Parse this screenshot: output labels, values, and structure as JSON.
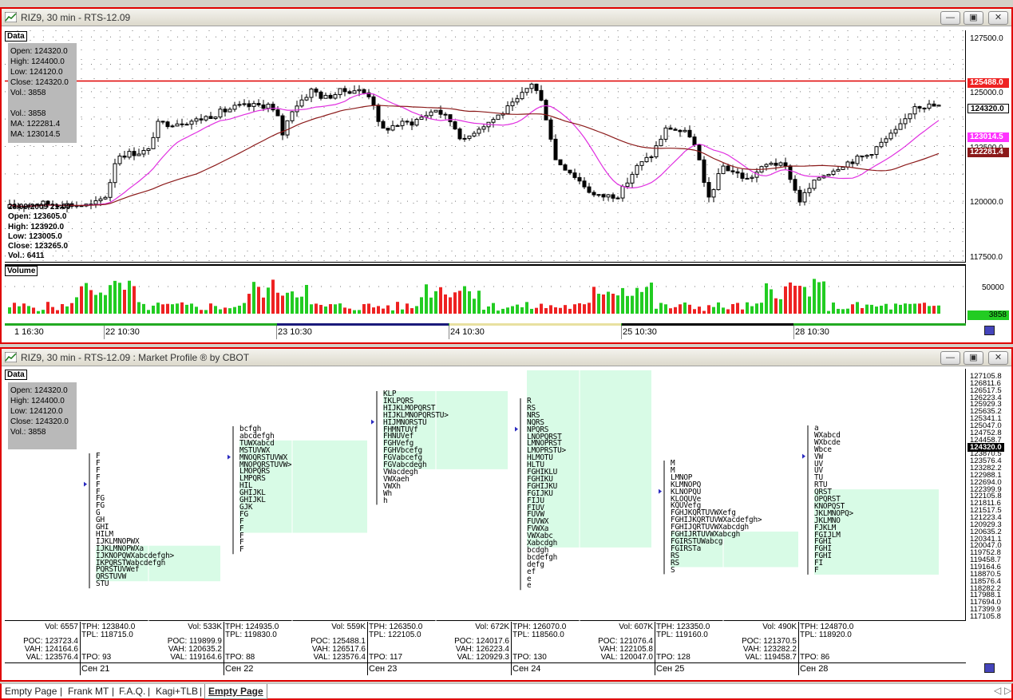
{
  "top_window": {
    "title": "RIZ9, 30 min - RTS-12.09",
    "data_tag": "Data",
    "ohlc_box": [
      "Open: 124320.0",
      "High: 124400.0",
      "Low: 124120.0",
      "Close: 124320.0",
      "Vol.: 3858",
      "",
      "Vol.: 3858",
      "MA: 122281.4",
      "MA: 123014.5"
    ],
    "hover_box": [
      "23/09/2009 21:00",
      "Open: 123605.0",
      "High: 123920.0",
      "Low: 123005.0",
      "Close: 123265.0",
      "Vol.: 6411"
    ],
    "price_ticks": [
      "127500.0",
      "125000.0",
      "122500.0",
      "120000.0",
      "117500.0"
    ],
    "price_tags": [
      {
        "text": "125488.0",
        "bg": "#ee2222",
        "fg": "#ffffff"
      },
      {
        "text": "124320.0",
        "bg": "#ffffff",
        "fg": "#000000"
      },
      {
        "text": "123014.5",
        "bg": "#ff33ff",
        "fg": "#ffffff"
      },
      {
        "text": "122281.4",
        "bg": "#8b1a1a",
        "fg": "#ffffff"
      }
    ],
    "volume_tag": "Volume",
    "volume_tick": "50000",
    "volume_last": "3858",
    "time_labels": [
      "1 16:30",
      "22 10:30",
      "23 10:30",
      "24 10:30",
      "25 10:30",
      "28 10:30"
    ],
    "colors": {
      "ma_fast": "#e030e0",
      "ma_slow": "#8b1a1a",
      "level": "#e00000",
      "up": "#22cc22",
      "down": "#ee2222"
    }
  },
  "bottom_window": {
    "title": "RIZ9, 30 min - RTS-12.09 : Market Profile ® by CBOT",
    "data_tag": "Data",
    "ohlc_box": [
      "Open: 124320.0",
      "High: 124400.0",
      "Low: 124120.0",
      "Close: 124320.0",
      "Vol.: 3858"
    ],
    "price_ticks": [
      "127105.8",
      "126811.6",
      "126517.5",
      "126223.4",
      "125929.3",
      "125635.2",
      "125341.1",
      "125047.0",
      "124752.8",
      "124458.7",
      "124320.0",
      "123870.5",
      "123576.4",
      "123282.2",
      "122988.1",
      "122694.0",
      "122399.9",
      "122105.8",
      "121811.6",
      "121517.5",
      "121223.4",
      "120929.3",
      "120635.2",
      "120341.1",
      "120047.0",
      "119752.8",
      "119458.7",
      "119164.6",
      "118870.5",
      "118576.4",
      "118282.2",
      "117988.1",
      "117694.0",
      "117399.9",
      "117105.8"
    ],
    "profiles": [
      {
        "day": "Сен 21",
        "tph": "TPH: 123840.0",
        "tpl": "TPL: 118715.0",
        "vol": "Vol: 6557",
        "poc": "POC: 123723.4",
        "vah": "VAH: 124164.6",
        "val": "VAL: 123576.4",
        "tpo": "TPO: 93",
        "rows": [
          "F",
          "F",
          "F",
          "F",
          "F",
          "F",
          "FG",
          "FG",
          "G",
          "GH",
          "GHI",
          "HILM",
          "IJKLMNOPWX",
          "IJKLMNOPWXa",
          "IJKNOPQWXabcdefgh>",
          "IKPQRSTWabcdefgh",
          "PQRSTUVWef",
          "QRSTUVW",
          "STU"
        ]
      },
      {
        "day": "Сен 22",
        "tph": "TPH: 124935.0",
        "tpl": "TPL: 119830.0",
        "vol": "Vol: 533K",
        "poc": "POC: 119899.9",
        "vah": "VAH: 120635.2",
        "val": "VAL: 119164.6",
        "tpo": "TPO: 88",
        "rows": [
          "bcfgh",
          "abcdefgh",
          "TUWXabcd",
          "MSTUVWX",
          "MNOQRSTUVWX",
          "MNOPQRSTUVW>",
          "LMOPQRS",
          "LMPQRS",
          "HIL",
          "GHIJKL",
          "GHIJKL",
          "GJK",
          "FG",
          "F",
          "F",
          "F",
          "F",
          "F"
        ]
      },
      {
        "day": "Сен 23",
        "tph": "TPH: 126350.0",
        "tpl": "TPL: 122105.0",
        "vol": "Vol: 559K",
        "poc": "POC: 125488.1",
        "vah": "VAH: 126517.6",
        "val": "VAL: 123576.4",
        "tpo": "TPO: 117",
        "rows": [
          "KLP",
          "IKLPQRS",
          "HIJKLMOPQRST",
          "HIJKLMNOPQRSTU>",
          "HIJMNORSTU",
          "FHMNTUVf",
          "FHNUVef",
          "FGHVefg",
          "FGHVbcefg",
          "FGVabcefg",
          "FGVabcdegh",
          "VWacdegh",
          "VWXaeh",
          "VWXh",
          "Wh",
          "h"
        ]
      },
      {
        "day": "Сен 24",
        "tph": "TPH: 126070.0",
        "tpl": "TPL: 118560.0",
        "vol": "Vol: 672K",
        "poc": "POC: 124017.6",
        "vah": "VAH: 126223.4",
        "val": "VAL: 120929.3",
        "tpo": "TPO: 130",
        "rows": [
          "R",
          "RS",
          "NRS",
          "NQRS",
          "NPQRS",
          "LNOPQRST",
          "LMNOPRST",
          "LMOPRSTU>",
          "HLMOTU",
          "HLTU",
          "FGHIKLU",
          "FGHIKU",
          "FGHIJKU",
          "FGIJKU",
          "FIJU",
          "FIUV",
          "FUVW",
          "FUVWX",
          "FVWXa",
          "VWXabc",
          "Xabcdgh",
          "bcdgh",
          "bcdefgh",
          "defg",
          "ef",
          "e",
          "e"
        ]
      },
      {
        "day": "Сен 25",
        "tph": "TPH: 123350.0",
        "tpl": "TPL: 119160.0",
        "vol": "Vol: 607K",
        "poc": "POC: 121076.4",
        "vah": "VAH: 122105.8",
        "val": "VAL: 120047.0",
        "tpo": "TPO: 128",
        "rows": [
          "M",
          "M",
          "LMNOP",
          "KLMNOPQ",
          "KLNOPQU",
          "KLOQUVe",
          "KQUVefg",
          "FGHJKQRTUVWXefg",
          "FGHIJKQRTUVWXacdefgh>",
          "FGHIJQRTUVWXabcdgh",
          "FGHIJRTUVWXabcgh",
          "FGIRSTUWabcg",
          "FGIRSTa",
          "RS",
          "RS",
          "S"
        ]
      },
      {
        "day": "Сен 28",
        "tph": "TPH: 124870.0",
        "tpl": "TPL: 118920.0",
        "vol": "Vol: 490K",
        "poc": "POC: 121370.5",
        "vah": "VAH: 123282.2",
        "val": "VAL: 119458.7",
        "tpo": "TPO: 86",
        "rows": [
          "a",
          "WXabcd",
          "WXbcde",
          "Wbce",
          "VW",
          "UV",
          "UV",
          "TU",
          "RTU",
          "QRST",
          "OPQRST",
          "KNOPQST",
          "JKLMNOPQ>",
          "JKLMNO",
          "FJKLM",
          "FGIJLM",
          "FGHI",
          "FGHI",
          "FGHI",
          "FI",
          "F"
        ]
      }
    ]
  },
  "tabs": [
    "Empty Page",
    "Frank MT",
    "F.A.Q.",
    "Kagi+TLB",
    "Empty Page"
  ],
  "active_tab_index": 4
}
